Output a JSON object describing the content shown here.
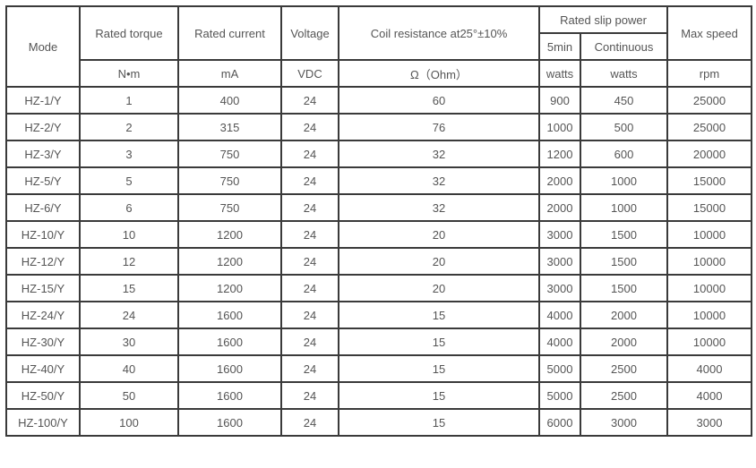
{
  "headers": {
    "mode": "Mode",
    "rated_torque": "Rated torque",
    "rated_current": "Rated current",
    "voltage": "Voltage",
    "coil_resistance": "Coil resistance at25°±10%",
    "rated_slip_power": "Rated slip power",
    "five_min": "5min",
    "continuous": "Continuous",
    "max_speed": "Max speed"
  },
  "units": {
    "rated_torque": "N•m",
    "rated_current": "mA",
    "voltage": "VDC",
    "coil_resistance": "Ω（Ohm）",
    "five_min": "watts",
    "continuous": "watts",
    "max_speed": "rpm"
  },
  "rows": [
    [
      "HZ-1/Y",
      "1",
      "400",
      "24",
      "60",
      "900",
      "450",
      "25000"
    ],
    [
      "HZ-2/Y",
      "2",
      "315",
      "24",
      "76",
      "1000",
      "500",
      "25000"
    ],
    [
      "HZ-3/Y",
      "3",
      "750",
      "24",
      "32",
      "1200",
      "600",
      "20000"
    ],
    [
      "HZ-5/Y",
      "5",
      "750",
      "24",
      "32",
      "2000",
      "1000",
      "15000"
    ],
    [
      "HZ-6/Y",
      "6",
      "750",
      "24",
      "32",
      "2000",
      "1000",
      "15000"
    ],
    [
      "HZ-10/Y",
      "10",
      "1200",
      "24",
      "20",
      "3000",
      "1500",
      "10000"
    ],
    [
      "HZ-12/Y",
      "12",
      "1200",
      "24",
      "20",
      "3000",
      "1500",
      "10000"
    ],
    [
      "HZ-15/Y",
      "15",
      "1200",
      "24",
      "20",
      "3000",
      "1500",
      "10000"
    ],
    [
      "HZ-24/Y",
      "24",
      "1600",
      "24",
      "15",
      "4000",
      "2000",
      "10000"
    ],
    [
      "HZ-30/Y",
      "30",
      "1600",
      "24",
      "15",
      "4000",
      "2000",
      "10000"
    ],
    [
      "HZ-40/Y",
      "40",
      "1600",
      "24",
      "15",
      "5000",
      "2500",
      "4000"
    ],
    [
      "HZ-50/Y",
      "50",
      "1600",
      "24",
      "15",
      "5000",
      "2500",
      "4000"
    ],
    [
      "HZ-100/Y",
      "100",
      "1600",
      "24",
      "15",
      "6000",
      "3000",
      "3000"
    ]
  ]
}
